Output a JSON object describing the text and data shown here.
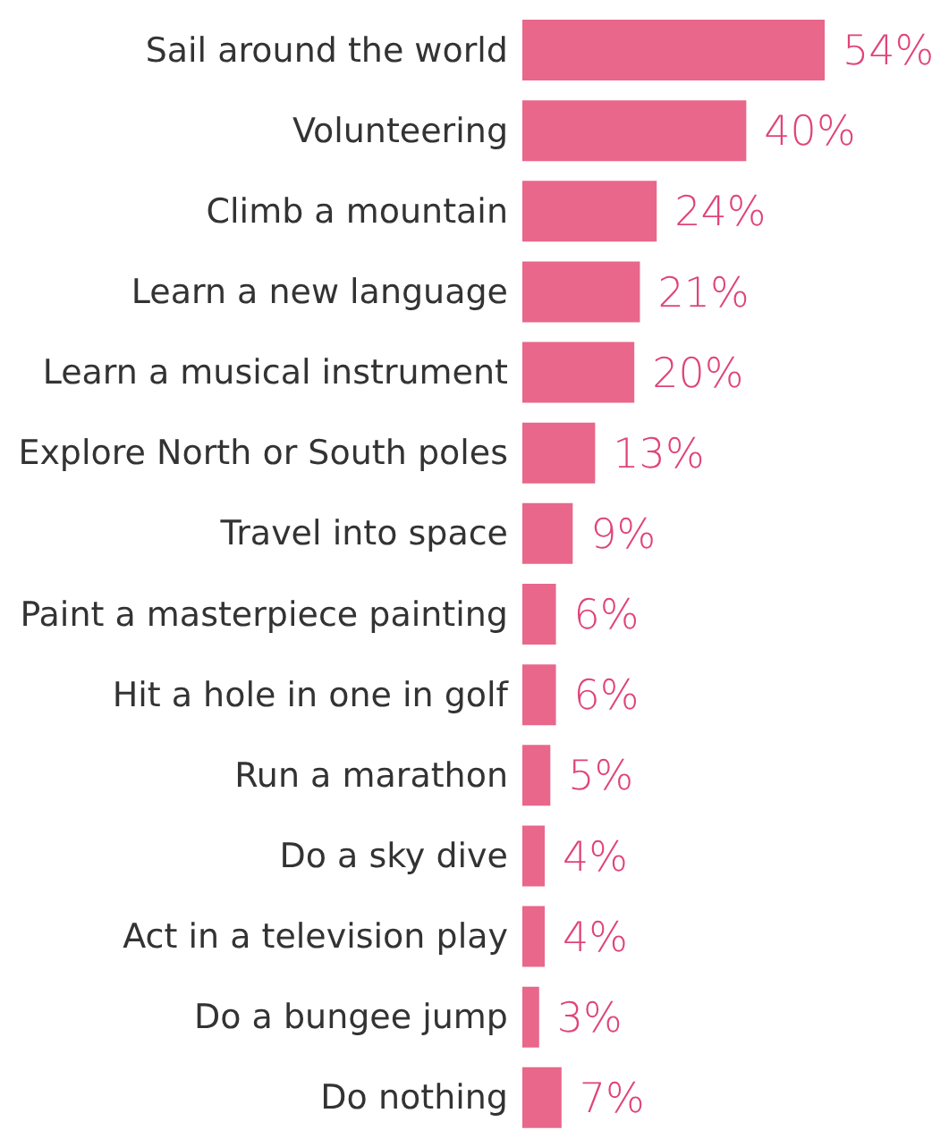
{
  "chart_data": {
    "type": "bar",
    "orientation": "horizontal",
    "categories": [
      "Sail around the world",
      "Volunteering",
      "Climb a mountain",
      "Learn a new language",
      "Learn a musical instrument",
      "Explore North or South poles",
      "Travel into space",
      "Paint a masterpiece painting",
      "Hit a hole in one in golf",
      "Run a marathon",
      "Do a sky dive",
      "Act in a television play",
      "Do a bungee jump",
      "Do nothing"
    ],
    "values": [
      54,
      40,
      24,
      21,
      20,
      13,
      9,
      6,
      6,
      5,
      4,
      4,
      3,
      7
    ],
    "value_labels": [
      "54%",
      "40%",
      "24%",
      "21%",
      "20%",
      "13%",
      "9%",
      "6%",
      "6%",
      "5%",
      "4%",
      "4%",
      "3%",
      "7%"
    ],
    "color": "#e8678a",
    "grid": false,
    "legend": false
  }
}
